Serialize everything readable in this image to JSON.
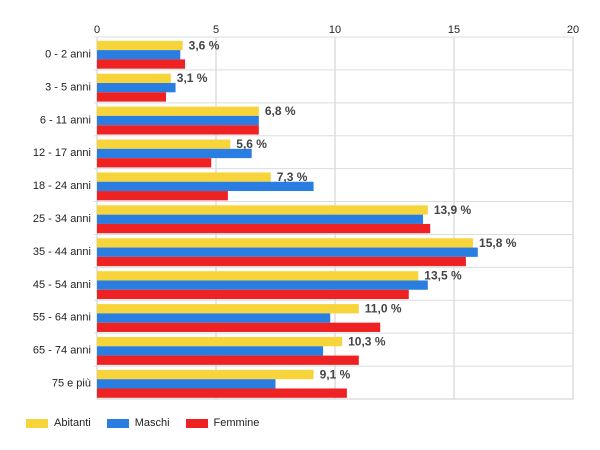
{
  "chart_data": {
    "type": "bar",
    "orientation": "horizontal",
    "categories": [
      "0 - 2 anni",
      "3 - 5 anni",
      "6 - 11 anni",
      "12 - 17 anni",
      "18 - 24 anni",
      "25 - 34 anni",
      "35 - 44 anni",
      "45 - 54 anni",
      "55 - 64 anni",
      "65 - 74 anni",
      "75 e più"
    ],
    "series": [
      {
        "name": "Abitanti",
        "color": "#f7d43a",
        "values": [
          3.6,
          3.1,
          6.8,
          5.6,
          7.3,
          13.9,
          15.8,
          13.5,
          11.0,
          10.3,
          9.1
        ]
      },
      {
        "name": "Maschi",
        "color": "#2a7de1",
        "values": [
          3.5,
          3.3,
          6.8,
          6.5,
          9.1,
          13.7,
          16.0,
          13.9,
          9.8,
          9.5,
          7.5
        ]
      },
      {
        "name": "Femmine",
        "color": "#ee2222",
        "values": [
          3.7,
          2.9,
          6.8,
          4.8,
          5.5,
          14.0,
          15.5,
          13.1,
          11.9,
          11.0,
          10.5
        ]
      }
    ],
    "data_labels": [
      "3,6 %",
      "3,1 %",
      "6,8 %",
      "5,6 %",
      "7,3 %",
      "13,9 %",
      "15,8 %",
      "13,5 %",
      "11,0 %",
      "10,3 %",
      "9,1 %"
    ],
    "xlim": [
      0,
      20
    ],
    "xticks": [
      0,
      5,
      10,
      15,
      20
    ],
    "xtick_labels": [
      "0",
      "5",
      "10",
      "15",
      "20"
    ],
    "x_axis_position": "top",
    "grid": true,
    "legend_position": "bottom-left"
  }
}
